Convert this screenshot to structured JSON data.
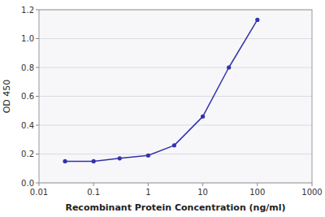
{
  "chart_data": {
    "type": "line",
    "x": [
      0.03,
      0.1,
      0.3,
      1.0,
      3.0,
      10.0,
      30.0,
      100.0
    ],
    "values": [
      0.15,
      0.15,
      0.17,
      0.19,
      0.26,
      0.46,
      0.8,
      1.13
    ],
    "color": "#3333aa",
    "marker": "circle",
    "xlabel": "Recombinant Protein Concentration (ng/ml)",
    "ylabel": "OD 450",
    "log": "x",
    "xlim": [
      0.01,
      1000
    ],
    "ylim": [
      0,
      1.2
    ],
    "xticks": [
      0.01,
      0.1,
      1,
      10,
      100,
      1000
    ],
    "yticks": [
      {
        "value": 0,
        "label": "0.0"
      },
      0.2,
      0.4,
      0.6,
      0.8,
      {
        "value": 1.0,
        "label": "1.0"
      },
      1.2
    ],
    "grid": true
  }
}
